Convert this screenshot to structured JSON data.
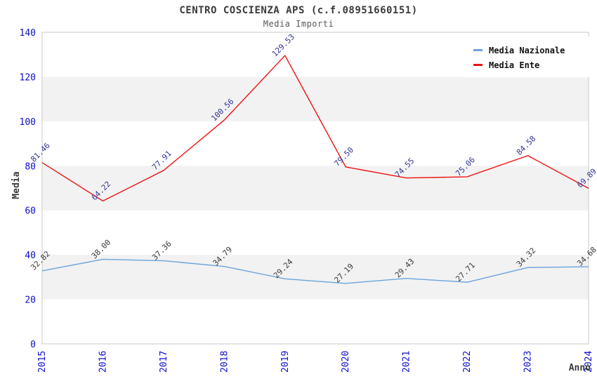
{
  "chart_data": {
    "type": "line",
    "title": "CENTRO COSCIENZA APS (c.f.08951660151)",
    "subtitle": "Media Importi",
    "xlabel": "Anno",
    "ylabel": "Media",
    "x": [
      "2015",
      "2016",
      "2017",
      "2018",
      "2019",
      "2020",
      "2021",
      "2022",
      "2023",
      "2024"
    ],
    "ylim": [
      0,
      140
    ],
    "ytick_step": 20,
    "yticks": [
      0,
      20,
      40,
      60,
      80,
      100,
      120,
      140
    ],
    "grid": "alternating-horizontal-bands",
    "legend_position": "top-right-inside",
    "series": [
      {
        "name": "Media Nazionale",
        "color": "#6aa4dc",
        "label_color": "#3a3a3a",
        "values": [
          32.82,
          38.0,
          37.36,
          34.79,
          29.24,
          27.19,
          29.43,
          27.71,
          34.32,
          34.68
        ],
        "point_labels": [
          "32.82",
          "38.00",
          "37.36",
          "34.79",
          "29.24",
          "27.19",
          "29.43",
          "27.71",
          "34.32",
          "34.68"
        ]
      },
      {
        "name": "Media Ente",
        "color": "#ee1212",
        "label_color": "#333399",
        "values": [
          81.46,
          64.22,
          77.91,
          100.56,
          129.53,
          79.5,
          74.55,
          75.06,
          84.58,
          69.89
        ],
        "point_labels": [
          "81.46",
          "64.22",
          "77.91",
          "100.56",
          "129.53",
          "79.50",
          "74.55",
          "75.06",
          "84.58",
          "69.89"
        ]
      }
    ],
    "colors": {
      "tick_label": "#0d0dd0",
      "axis_title": "#3a3a3a",
      "band": "#f2f2f2",
      "plot_border": "#c9c9c9",
      "background": "#ffffff"
    }
  }
}
